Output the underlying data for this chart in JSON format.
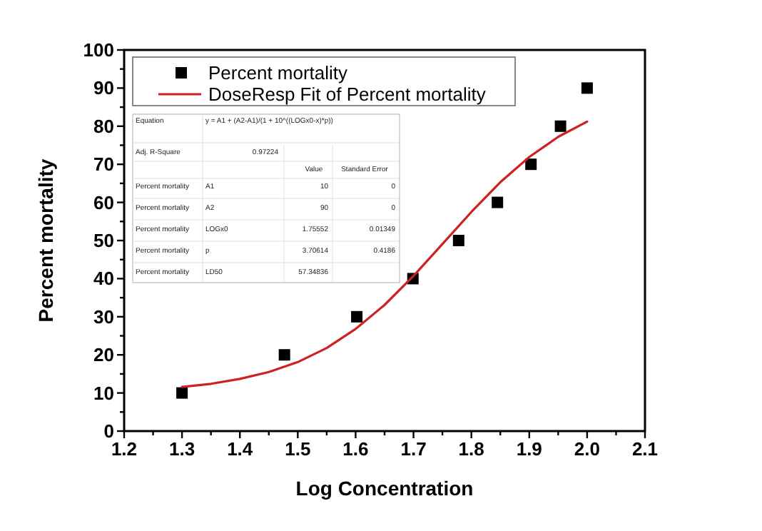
{
  "chart_data": {
    "type": "scatter",
    "xlabel": "Log Concentration",
    "ylabel": "Percent mortality",
    "xlim": [
      1.2,
      2.1
    ],
    "xticks": [
      {
        "value": 1.2,
        "label": "1.2"
      },
      {
        "value": 1.25,
        "label": null
      },
      {
        "value": 1.3,
        "label": "1.3"
      },
      {
        "value": 1.35,
        "label": null
      },
      {
        "value": 1.4,
        "label": "1.4"
      },
      {
        "value": 1.45,
        "label": null
      },
      {
        "value": 1.5,
        "label": "1.5"
      },
      {
        "value": 1.55,
        "label": null
      },
      {
        "value": 1.6,
        "label": "1.6"
      },
      {
        "value": 1.65,
        "label": null
      },
      {
        "value": 1.7,
        "label": "1.7"
      },
      {
        "value": 1.75,
        "label": null
      },
      {
        "value": 1.8,
        "label": "1.8"
      },
      {
        "value": 1.85,
        "label": null
      },
      {
        "value": 1.9,
        "label": "1.9"
      },
      {
        "value": 1.95,
        "label": null
      },
      {
        "value": 2.0,
        "label": "2.0"
      },
      {
        "value": 2.05,
        "label": null
      },
      {
        "value": 2.1,
        "label": "2.1"
      }
    ],
    "ylim": [
      0,
      100
    ],
    "yticks": [
      0,
      {
        "value": 5,
        "label": null
      },
      10,
      {
        "value": 15,
        "label": null
      },
      20,
      {
        "value": 25,
        "label": null
      },
      30,
      {
        "value": 35,
        "label": null
      },
      40,
      {
        "value": 45,
        "label": null
      },
      50,
      {
        "value": 55,
        "label": null
      },
      60,
      {
        "value": 65,
        "label": null
      },
      70,
      {
        "value": 75,
        "label": null
      },
      80,
      {
        "value": 85,
        "label": null
      },
      90,
      {
        "value": 95,
        "label": null
      },
      100
    ],
    "grid": false,
    "legend": "top left",
    "series": [
      {
        "name": "Percent mortality",
        "type": "scatter",
        "marker": "square",
        "color": "#000000",
        "x": [
          1.3,
          1.477,
          1.602,
          1.699,
          1.778,
          1.845,
          1.903,
          1.954,
          2.0
        ],
        "values": [
          10,
          20,
          30,
          40,
          50,
          60,
          70,
          80,
          90
        ]
      },
      {
        "name": "DoseResp Fit of Percent mortality",
        "type": "line",
        "marker": "none",
        "line_style": "solid",
        "color": "#cc2222",
        "x": [
          1.3,
          1.35,
          1.4,
          1.45,
          1.5,
          1.55,
          1.6,
          1.65,
          1.7,
          1.75,
          1.8,
          1.85,
          1.9,
          1.95,
          2.0
        ],
        "values": [
          11.6,
          12.4,
          13.7,
          15.5,
          18.1,
          21.8,
          26.8,
          33.1,
          40.7,
          49.1,
          57.5,
          65.3,
          71.9,
          77.2,
          81.2
        ]
      }
    ],
    "annotations": [
      "Equation",
      "y = A1 + (A2-A1)/(1 + 10^((LOGx0-x)*p))",
      "Adj. R-Square",
      "0.97224",
      "Value",
      "Standard Error",
      "Percent mortality",
      "A1",
      "10",
      "0",
      "Percent mortality",
      "A2",
      "90",
      "0",
      "Percent mortality",
      "LOGx0",
      "1.75552",
      "0.01349",
      "Percent mortality",
      "p",
      "3.70614",
      "0.4186",
      "Percent mortality",
      "LD50",
      "57.34836"
    ]
  }
}
